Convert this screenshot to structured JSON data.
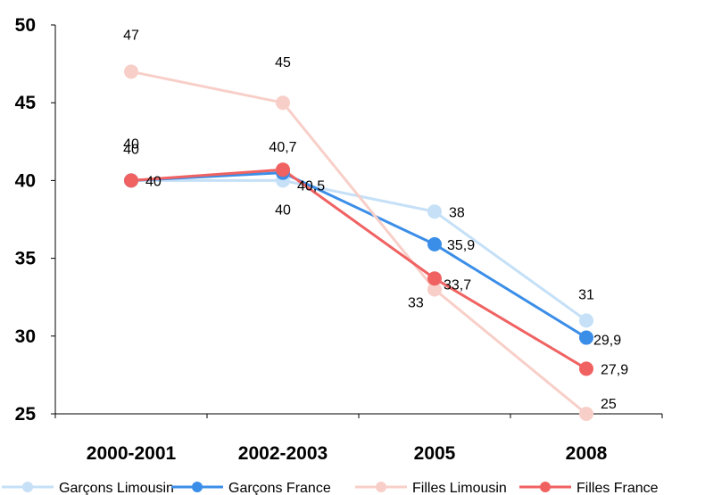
{
  "chart_data": {
    "type": "line",
    "title": "",
    "xlabel": "",
    "ylabel": "",
    "categories": [
      "2000-2001",
      "2002-2003",
      "2005",
      "2008"
    ],
    "ylim": [
      25,
      50
    ],
    "yticks": [
      25,
      30,
      35,
      40,
      45,
      50
    ],
    "grid": false,
    "legend_position": "bottom",
    "series": [
      {
        "name": "Garçons Limousin",
        "color": "#c5e0f7",
        "values": [
          40,
          40,
          38,
          31
        ],
        "labels": [
          "40",
          "40",
          "38",
          "31"
        ]
      },
      {
        "name": "Garçons France",
        "color": "#3b8ee8",
        "values": [
          40,
          40.5,
          35.9,
          29.9
        ],
        "labels": [
          "40",
          "40,5",
          "35,9",
          "29,9"
        ]
      },
      {
        "name": "Filles Limousin",
        "color": "#f8cfc8",
        "values": [
          47,
          45,
          33,
          25
        ],
        "labels": [
          "47",
          "45",
          "33",
          "25"
        ]
      },
      {
        "name": "Filles France",
        "color": "#f06262",
        "values": [
          40,
          40.7,
          33.7,
          27.9
        ],
        "labels": [
          "40",
          "40,7",
          "33,7",
          "27,9"
        ]
      }
    ]
  }
}
